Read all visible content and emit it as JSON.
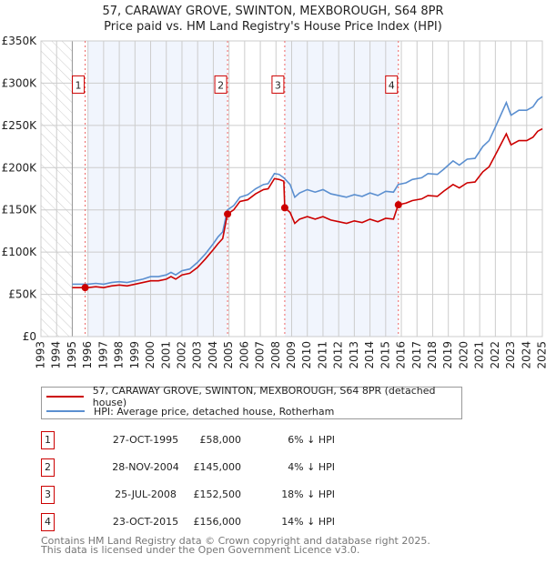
{
  "chart_data": {
    "type": "line",
    "title": "57, CARAWAY GROVE, SWINTON, MEXBOROUGH, S64 8PR",
    "subtitle": "Price paid vs. HM Land Registry's House Price Index (HPI)",
    "xlim": [
      1993,
      2025
    ],
    "ylim": [
      0,
      350000
    ],
    "x_ticks": [
      "1993",
      "1994",
      "1995",
      "1996",
      "1997",
      "1998",
      "1999",
      "2000",
      "2001",
      "2002",
      "2003",
      "2004",
      "2005",
      "2006",
      "2007",
      "2008",
      "2009",
      "2010",
      "2011",
      "2012",
      "2013",
      "2014",
      "2015",
      "2016",
      "2017",
      "2018",
      "2019",
      "2020",
      "2021",
      "2022",
      "2023",
      "2024",
      "2025"
    ],
    "y_ticks": [
      {
        "v": 0,
        "label": "£0"
      },
      {
        "v": 50000,
        "label": "£50K"
      },
      {
        "v": 100000,
        "label": "£100K"
      },
      {
        "v": 150000,
        "label": "£150K"
      },
      {
        "v": 200000,
        "label": "£200K"
      },
      {
        "v": 250000,
        "label": "£250K"
      },
      {
        "v": 300000,
        "label": "£300K"
      },
      {
        "v": 350000,
        "label": "£350K"
      }
    ],
    "grid": true,
    "hatched_before": 1995,
    "shaded_ranges": [
      [
        1996,
        2004.9
      ],
      [
        2008.56,
        2015.8
      ]
    ],
    "series": [
      {
        "name": "57, CARAWAY GROVE, SWINTON, MEXBOROUGH, S64 8PR (detached house)",
        "color": "#cc0000",
        "points": [
          [
            1995,
            58
          ],
          [
            1995.5,
            58
          ],
          [
            1996,
            58
          ],
          [
            1996.5,
            59
          ],
          [
            1997,
            58
          ],
          [
            1997.5,
            60
          ],
          [
            1998,
            61
          ],
          [
            1998.5,
            60
          ],
          [
            1999,
            62
          ],
          [
            1999.5,
            64
          ],
          [
            2000,
            66
          ],
          [
            2000.5,
            66
          ],
          [
            2001,
            68
          ],
          [
            2001.3,
            71
          ],
          [
            2001.6,
            68
          ],
          [
            2002,
            73
          ],
          [
            2002.5,
            75
          ],
          [
            2003,
            82
          ],
          [
            2003.5,
            92
          ],
          [
            2004,
            103
          ],
          [
            2004.3,
            110
          ],
          [
            2004.6,
            116
          ],
          [
            2004.9,
            145
          ],
          [
            2005.3,
            150
          ],
          [
            2005.7,
            160
          ],
          [
            2006.2,
            162
          ],
          [
            2006.7,
            169
          ],
          [
            2007.2,
            174
          ],
          [
            2007.5,
            175
          ],
          [
            2007.9,
            187
          ],
          [
            2008.2,
            186
          ],
          [
            2008.5,
            184
          ],
          [
            2008.56,
            152.5
          ],
          [
            2008.9,
            147
          ],
          [
            2009.2,
            134
          ],
          [
            2009.5,
            139
          ],
          [
            2010,
            142
          ],
          [
            2010.5,
            139
          ],
          [
            2011,
            142
          ],
          [
            2011.5,
            138
          ],
          [
            2012,
            136
          ],
          [
            2012.5,
            134
          ],
          [
            2013,
            137
          ],
          [
            2013.5,
            135
          ],
          [
            2014,
            139
          ],
          [
            2014.5,
            136
          ],
          [
            2015,
            140
          ],
          [
            2015.5,
            139
          ],
          [
            2015.8,
            156
          ],
          [
            2016.3,
            158
          ],
          [
            2016.7,
            161
          ],
          [
            2017.3,
            163
          ],
          [
            2017.7,
            167
          ],
          [
            2018.3,
            166
          ],
          [
            2018.7,
            172
          ],
          [
            2019.3,
            180
          ],
          [
            2019.7,
            176
          ],
          [
            2020.2,
            182
          ],
          [
            2020.7,
            183
          ],
          [
            2021.2,
            195
          ],
          [
            2021.6,
            201
          ],
          [
            2022,
            215
          ],
          [
            2022.7,
            240
          ],
          [
            2023,
            227
          ],
          [
            2023.5,
            232
          ],
          [
            2024,
            232
          ],
          [
            2024.4,
            236
          ],
          [
            2024.7,
            243
          ],
          [
            2025,
            246
          ]
        ]
      },
      {
        "name": "HPI: Average price, detached house, Rotherham",
        "color": "#5b8fd0",
        "points": [
          [
            1995,
            62
          ],
          [
            1995.5,
            62
          ],
          [
            1996,
            62
          ],
          [
            1996.5,
            63
          ],
          [
            1997,
            62
          ],
          [
            1997.5,
            64
          ],
          [
            1998,
            65
          ],
          [
            1998.5,
            64
          ],
          [
            1999,
            66
          ],
          [
            1999.5,
            68
          ],
          [
            2000,
            71
          ],
          [
            2000.5,
            71
          ],
          [
            2001,
            73
          ],
          [
            2001.3,
            76
          ],
          [
            2001.6,
            73
          ],
          [
            2002,
            78
          ],
          [
            2002.5,
            80
          ],
          [
            2003,
            88
          ],
          [
            2003.5,
            98
          ],
          [
            2004,
            110
          ],
          [
            2004.3,
            118
          ],
          [
            2004.6,
            124
          ],
          [
            2004.9,
            150
          ],
          [
            2005.3,
            155
          ],
          [
            2005.7,
            165
          ],
          [
            2006.2,
            168
          ],
          [
            2006.7,
            175
          ],
          [
            2007.2,
            180
          ],
          [
            2007.5,
            181
          ],
          [
            2007.9,
            193
          ],
          [
            2008.2,
            192
          ],
          [
            2008.5,
            188
          ],
          [
            2008.9,
            180
          ],
          [
            2009.2,
            165
          ],
          [
            2009.5,
            170
          ],
          [
            2010,
            174
          ],
          [
            2010.5,
            171
          ],
          [
            2011,
            174
          ],
          [
            2011.5,
            169
          ],
          [
            2012,
            167
          ],
          [
            2012.5,
            165
          ],
          [
            2013,
            168
          ],
          [
            2013.5,
            166
          ],
          [
            2014,
            170
          ],
          [
            2014.5,
            167
          ],
          [
            2015,
            172
          ],
          [
            2015.5,
            171
          ],
          [
            2015.8,
            180
          ],
          [
            2016.3,
            182
          ],
          [
            2016.7,
            186
          ],
          [
            2017.3,
            188
          ],
          [
            2017.7,
            193
          ],
          [
            2018.3,
            192
          ],
          [
            2018.7,
            198
          ],
          [
            2019.3,
            208
          ],
          [
            2019.7,
            203
          ],
          [
            2020.2,
            210
          ],
          [
            2020.7,
            211
          ],
          [
            2021.2,
            225
          ],
          [
            2021.6,
            232
          ],
          [
            2022,
            248
          ],
          [
            2022.7,
            277
          ],
          [
            2023,
            262
          ],
          [
            2023.5,
            268
          ],
          [
            2024,
            268
          ],
          [
            2024.4,
            272
          ],
          [
            2024.7,
            280
          ],
          [
            2025,
            284
          ]
        ]
      }
    ],
    "sales": [
      {
        "n": "1",
        "x": 1995.82,
        "value": 58000,
        "date": "27-OCT-1995",
        "price": "£58,000",
        "pct": "6% ↓ HPI"
      },
      {
        "n": "2",
        "x": 2004.91,
        "value": 145000,
        "date": "28-NOV-2004",
        "price": "£145,000",
        "pct": "4% ↓ HPI"
      },
      {
        "n": "3",
        "x": 2008.56,
        "value": 152500,
        "date": "25-JUL-2008",
        "price": "£152,500",
        "pct": "18% ↓ HPI"
      },
      {
        "n": "4",
        "x": 2015.81,
        "value": 156000,
        "date": "23-OCT-2015",
        "price": "£156,000",
        "pct": "14% ↓ HPI"
      }
    ],
    "marker_label_value": 300000
  },
  "legend": {
    "property": "57, CARAWAY GROVE, SWINTON, MEXBOROUGH, S64 8PR (detached house)",
    "hpi": "HPI: Average price, detached house, Rotherham"
  },
  "footer": {
    "line1": "Contains HM Land Registry data © Crown copyright and database right 2025.",
    "line2": "This data is licensed under the Open Government Licence v3.0."
  }
}
